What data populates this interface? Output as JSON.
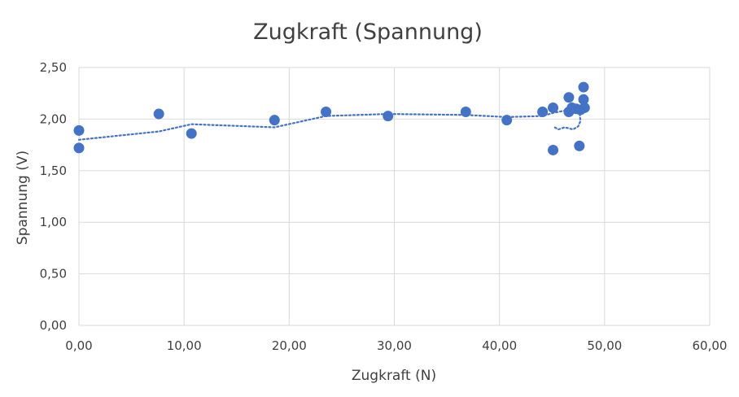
{
  "chart_data": {
    "type": "scatter",
    "title": "Zugkraft (Spannung)",
    "xlabel": "Zugkraft (N)",
    "ylabel": "Spannung (V)",
    "xlim": [
      0,
      60
    ],
    "ylim": [
      0,
      2.5
    ],
    "x_ticks": [
      "0,00",
      "10,00",
      "20,00",
      "30,00",
      "40,00",
      "50,00",
      "60,00"
    ],
    "y_ticks": [
      "0,00",
      "0,50",
      "1,00",
      "1,50",
      "2,00",
      "2,50"
    ],
    "grid": true,
    "legend": "none",
    "marker_color": "#4472c4",
    "trendline": {
      "style": "dotted moving average",
      "color": "#4472c4",
      "points": [
        [
          0.0,
          1.8
        ],
        [
          7.6,
          1.88
        ],
        [
          10.7,
          1.95
        ],
        [
          18.6,
          1.92
        ],
        [
          23.5,
          2.03
        ],
        [
          29.4,
          2.05
        ],
        [
          36.8,
          2.04
        ],
        [
          40.7,
          2.02
        ],
        [
          44.1,
          2.03
        ],
        [
          45.1,
          2.06
        ],
        [
          46.6,
          2.09
        ],
        [
          46.9,
          2.11
        ],
        [
          47.3,
          2.14
        ],
        [
          47.6,
          2.11
        ],
        [
          47.7,
          1.98
        ],
        [
          47.5,
          1.93
        ],
        [
          47.0,
          1.9
        ],
        [
          46.2,
          1.92
        ],
        [
          45.6,
          1.9
        ],
        [
          45.1,
          1.93
        ]
      ]
    },
    "series": [
      {
        "points": [
          [
            0.0,
            1.89
          ],
          [
            0.0,
            1.72
          ],
          [
            7.6,
            2.05
          ],
          [
            10.7,
            1.86
          ],
          [
            18.6,
            1.99
          ],
          [
            23.5,
            2.07
          ],
          [
            29.4,
            2.03
          ],
          [
            36.8,
            2.07
          ],
          [
            40.7,
            1.99
          ],
          [
            44.1,
            2.07
          ],
          [
            45.1,
            2.11
          ],
          [
            45.1,
            1.7
          ],
          [
            46.6,
            2.21
          ],
          [
            46.6,
            2.07
          ],
          [
            46.9,
            2.11
          ],
          [
            47.3,
            2.1
          ],
          [
            47.6,
            1.74
          ],
          [
            47.7,
            2.09
          ],
          [
            48.0,
            2.31
          ],
          [
            48.0,
            2.19
          ],
          [
            48.1,
            2.11
          ]
        ]
      }
    ]
  }
}
